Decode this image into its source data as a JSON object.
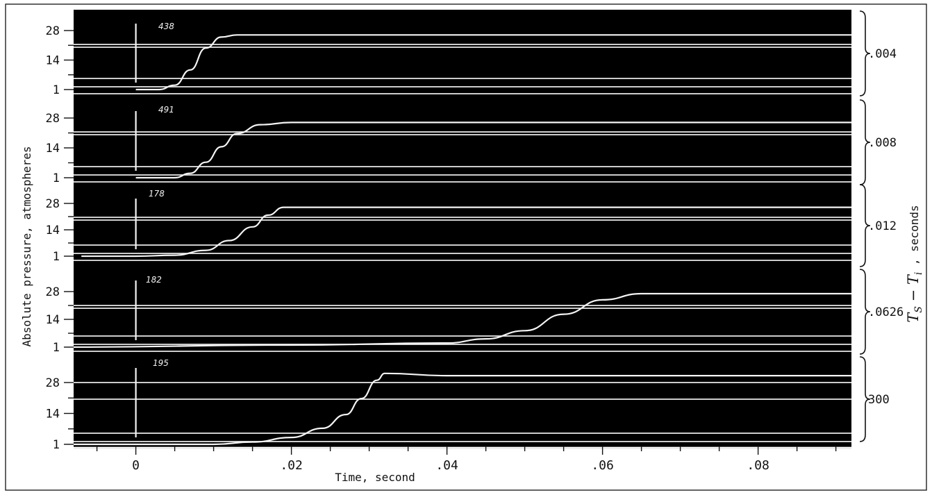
{
  "chart_data": {
    "type": "line",
    "xlabel": "Time, second",
    "ylabel": "Absolute pressure, atmospheres",
    "right_label": "T_S − T_i , seconds",
    "right_label_main": "T",
    "right_label_sub1": "S",
    "right_label_mid": " − T",
    "right_label_sub2": "i",
    "right_label_tail": " , seconds",
    "xlim": [
      -0.008,
      0.092
    ],
    "xticks": [
      0,
      0.02,
      0.04,
      0.06,
      0.08
    ],
    "xtick_labels": [
      "0",
      ".02",
      ".04",
      ".06",
      ".08"
    ],
    "ytick_labels": [
      "28",
      "14",
      "1"
    ],
    "ylim": [
      1,
      28
    ],
    "background": "#000000",
    "trace_color": "#f4f4f4",
    "panels": [
      {
        "label": "438",
        "delay_label": ".004",
        "x": [
          -0.0,
          0.003,
          0.005,
          0.007,
          0.009,
          0.011,
          0.013,
          0.02,
          0.04,
          0.092
        ],
        "y": [
          1,
          1,
          3,
          10,
          20,
          25,
          26,
          26,
          26,
          26
        ]
      },
      {
        "label": "491",
        "delay_label": ".008",
        "x": [
          -0.0,
          0.005,
          0.007,
          0.009,
          0.011,
          0.013,
          0.016,
          0.02,
          0.03,
          0.092
        ],
        "y": [
          1,
          1,
          3,
          8,
          15,
          21,
          25,
          26,
          26,
          26
        ]
      },
      {
        "label": "178",
        "delay_label": ".012",
        "x": [
          -0.007,
          0.0,
          0.005,
          0.009,
          0.012,
          0.015,
          0.017,
          0.019,
          0.025,
          0.092
        ],
        "y": [
          1,
          1,
          1.5,
          4,
          9,
          16,
          22,
          26,
          26,
          26
        ]
      },
      {
        "label": "182",
        "delay_label": ".0626",
        "x": [
          -0.009,
          0.02,
          0.04,
          0.045,
          0.05,
          0.055,
          0.06,
          0.065,
          0.068,
          0.092
        ],
        "y": [
          1,
          2,
          3,
          5,
          9,
          17,
          24,
          27,
          27,
          27
        ]
      },
      {
        "label": "195",
        "delay_label": "300",
        "x": [
          -0.009,
          0.01,
          0.015,
          0.02,
          0.024,
          0.027,
          0.029,
          0.031,
          0.032,
          0.04,
          0.092
        ],
        "y": [
          1,
          1,
          2,
          4,
          8,
          14,
          21,
          29,
          32,
          31,
          31
        ]
      }
    ]
  }
}
